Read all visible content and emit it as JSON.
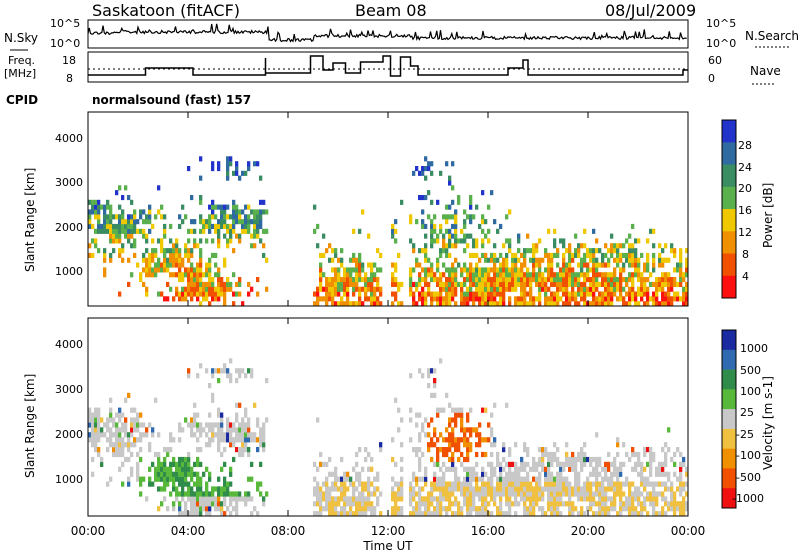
{
  "header": {
    "station": "Saskatoon (fitACF)",
    "beam": "Beam 08",
    "date": "08/Jul/2009"
  },
  "noise_panel": {
    "left_label": "N.Sky",
    "right_label": "N.Search",
    "left_ticks": [
      "10^5",
      "10^0"
    ],
    "right_ticks": [
      "10^5",
      "10^0"
    ]
  },
  "freq_panel": {
    "left_label_line1": "Freq.",
    "left_label_line2": "[MHz]",
    "right_label": "Nave",
    "left_ticks": [
      "18",
      "8"
    ],
    "right_ticks": [
      "60",
      "0"
    ]
  },
  "cpid": {
    "label": "CPID",
    "program": "normalsound (fast) 157"
  },
  "colors": {
    "power": [
      "#2233cc",
      "#2f6aa0",
      "#3a8c63",
      "#59b04d",
      "#f0c800",
      "#f09000",
      "#f05000",
      "#ff1010"
    ],
    "velocity": [
      "#1a2aa0",
      "#2f6ab0",
      "#2f8c4a",
      "#58b83a",
      "#c8c8c8",
      "#f0c040",
      "#f09000",
      "#f05000",
      "#f01010"
    ]
  },
  "chart_data": [
    {
      "type": "heatmap",
      "title": "Power",
      "ylabel": "Slant Range [km]",
      "colorbar_label": "Power [dB]",
      "colorbar_ticks": [
        "28",
        "24",
        "20",
        "16",
        "12",
        "8",
        "4"
      ],
      "x_range": [
        "00:00",
        "24:00"
      ],
      "y_range": [
        180,
        4600
      ],
      "y_ticks": [
        "4000",
        "3000",
        "2000",
        "1000"
      ]
    },
    {
      "type": "heatmap",
      "title": "Velocity",
      "ylabel": "Slant Range [km]",
      "colorbar_label": "Velocity [m s-1]",
      "colorbar_ticks": [
        "1000",
        "500",
        "100",
        "25",
        "-25",
        "-100",
        "-500",
        "-1000"
      ],
      "x_range": [
        "00:00",
        "24:00"
      ],
      "y_range": [
        180,
        4600
      ],
      "y_ticks": [
        "4000",
        "3000",
        "2000",
        "1000"
      ],
      "xlabel": "Time UT",
      "x_ticks": [
        "00:00",
        "04:00",
        "08:00",
        "12:00",
        "16:00",
        "20:00",
        "00:00"
      ]
    }
  ]
}
